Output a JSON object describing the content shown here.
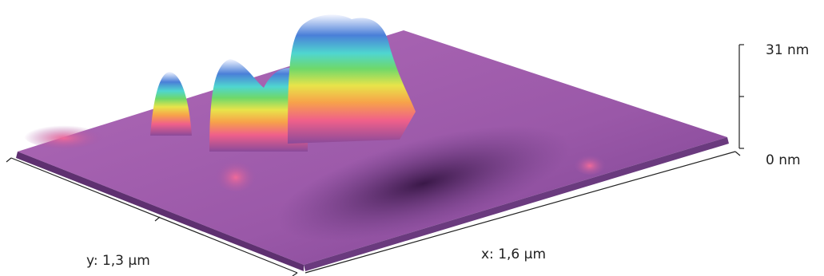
{
  "axes": {
    "z_max": "31 nm",
    "z_min": "0 nm",
    "x": "x: 1,6 µm",
    "y": "y: 1,3 µm"
  }
}
